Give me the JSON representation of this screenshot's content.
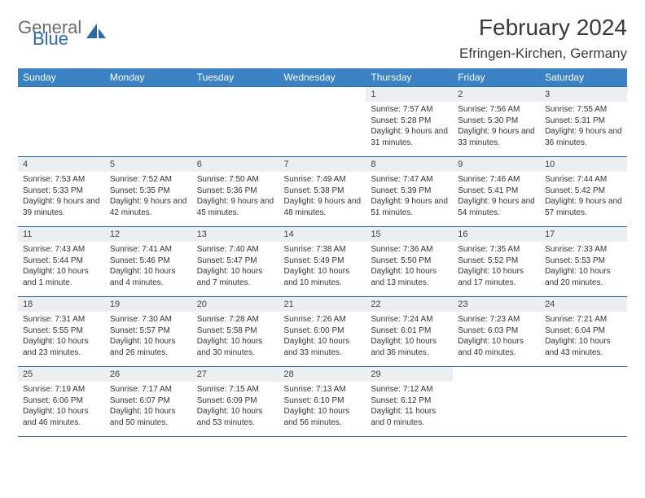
{
  "logo": {
    "general": "General",
    "blue": "Blue"
  },
  "title": "February 2024",
  "location": "Efringen-Kirchen, Germany",
  "colors": {
    "header_bg": "#3a82c4",
    "header_text": "#ffffff",
    "border": "#2f6aa8",
    "daynum_bg": "#eceff1",
    "logo_general": "#6c6c6c",
    "logo_blue": "#2f6aa8",
    "logo_shape": "#2f6aa8"
  },
  "weekdays": [
    "Sunday",
    "Monday",
    "Tuesday",
    "Wednesday",
    "Thursday",
    "Friday",
    "Saturday"
  ],
  "weeks": [
    [
      null,
      null,
      null,
      null,
      {
        "n": "1",
        "sr": "7:57 AM",
        "ss": "5:28 PM",
        "dl": "9 hours and 31 minutes."
      },
      {
        "n": "2",
        "sr": "7:56 AM",
        "ss": "5:30 PM",
        "dl": "9 hours and 33 minutes."
      },
      {
        "n": "3",
        "sr": "7:55 AM",
        "ss": "5:31 PM",
        "dl": "9 hours and 36 minutes."
      }
    ],
    [
      {
        "n": "4",
        "sr": "7:53 AM",
        "ss": "5:33 PM",
        "dl": "9 hours and 39 minutes."
      },
      {
        "n": "5",
        "sr": "7:52 AM",
        "ss": "5:35 PM",
        "dl": "9 hours and 42 minutes."
      },
      {
        "n": "6",
        "sr": "7:50 AM",
        "ss": "5:36 PM",
        "dl": "9 hours and 45 minutes."
      },
      {
        "n": "7",
        "sr": "7:49 AM",
        "ss": "5:38 PM",
        "dl": "9 hours and 48 minutes."
      },
      {
        "n": "8",
        "sr": "7:47 AM",
        "ss": "5:39 PM",
        "dl": "9 hours and 51 minutes."
      },
      {
        "n": "9",
        "sr": "7:46 AM",
        "ss": "5:41 PM",
        "dl": "9 hours and 54 minutes."
      },
      {
        "n": "10",
        "sr": "7:44 AM",
        "ss": "5:42 PM",
        "dl": "9 hours and 57 minutes."
      }
    ],
    [
      {
        "n": "11",
        "sr": "7:43 AM",
        "ss": "5:44 PM",
        "dl": "10 hours and 1 minute."
      },
      {
        "n": "12",
        "sr": "7:41 AM",
        "ss": "5:46 PM",
        "dl": "10 hours and 4 minutes."
      },
      {
        "n": "13",
        "sr": "7:40 AM",
        "ss": "5:47 PM",
        "dl": "10 hours and 7 minutes."
      },
      {
        "n": "14",
        "sr": "7:38 AM",
        "ss": "5:49 PM",
        "dl": "10 hours and 10 minutes."
      },
      {
        "n": "15",
        "sr": "7:36 AM",
        "ss": "5:50 PM",
        "dl": "10 hours and 13 minutes."
      },
      {
        "n": "16",
        "sr": "7:35 AM",
        "ss": "5:52 PM",
        "dl": "10 hours and 17 minutes."
      },
      {
        "n": "17",
        "sr": "7:33 AM",
        "ss": "5:53 PM",
        "dl": "10 hours and 20 minutes."
      }
    ],
    [
      {
        "n": "18",
        "sr": "7:31 AM",
        "ss": "5:55 PM",
        "dl": "10 hours and 23 minutes."
      },
      {
        "n": "19",
        "sr": "7:30 AM",
        "ss": "5:57 PM",
        "dl": "10 hours and 26 minutes."
      },
      {
        "n": "20",
        "sr": "7:28 AM",
        "ss": "5:58 PM",
        "dl": "10 hours and 30 minutes."
      },
      {
        "n": "21",
        "sr": "7:26 AM",
        "ss": "6:00 PM",
        "dl": "10 hours and 33 minutes."
      },
      {
        "n": "22",
        "sr": "7:24 AM",
        "ss": "6:01 PM",
        "dl": "10 hours and 36 minutes."
      },
      {
        "n": "23",
        "sr": "7:23 AM",
        "ss": "6:03 PM",
        "dl": "10 hours and 40 minutes."
      },
      {
        "n": "24",
        "sr": "7:21 AM",
        "ss": "6:04 PM",
        "dl": "10 hours and 43 minutes."
      }
    ],
    [
      {
        "n": "25",
        "sr": "7:19 AM",
        "ss": "6:06 PM",
        "dl": "10 hours and 46 minutes."
      },
      {
        "n": "26",
        "sr": "7:17 AM",
        "ss": "6:07 PM",
        "dl": "10 hours and 50 minutes."
      },
      {
        "n": "27",
        "sr": "7:15 AM",
        "ss": "6:09 PM",
        "dl": "10 hours and 53 minutes."
      },
      {
        "n": "28",
        "sr": "7:13 AM",
        "ss": "6:10 PM",
        "dl": "10 hours and 56 minutes."
      },
      {
        "n": "29",
        "sr": "7:12 AM",
        "ss": "6:12 PM",
        "dl": "11 hours and 0 minutes."
      },
      null,
      null
    ]
  ],
  "labels": {
    "sunrise": "Sunrise:",
    "sunset": "Sunset:",
    "daylight": "Daylight:"
  }
}
